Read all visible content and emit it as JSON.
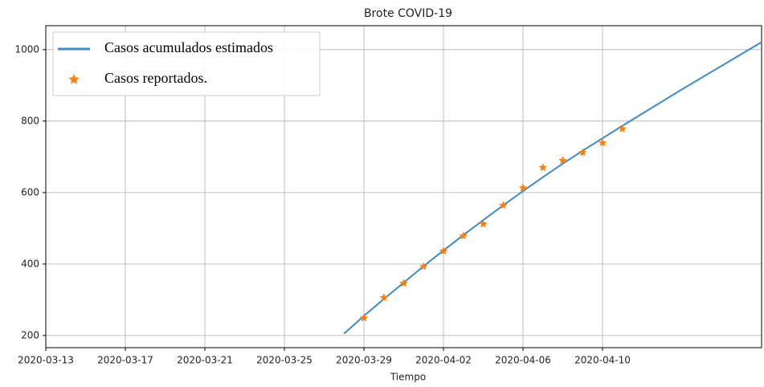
{
  "chart_data": {
    "type": "line",
    "title": "Brote COVID-19",
    "x_label": "Tiempo",
    "xlim": [
      "2020-03-13",
      "2020-04-18"
    ],
    "xticks": [
      "2020-03-13",
      "2020-03-17",
      "2020-03-21",
      "2020-03-25",
      "2020-03-29",
      "2020-04-02",
      "2020-04-06",
      "2020-04-10"
    ],
    "ylim": [
      166,
      1067
    ],
    "yticks": [
      200,
      400,
      600,
      800,
      1000
    ],
    "grid": true,
    "legend": "upper left",
    "series": [
      {
        "name": "Casos acumulados estimados",
        "color": "#3f8bc4",
        "style": "line",
        "x": [
          "2020-03-28",
          "2020-03-29",
          "2020-03-30",
          "2020-03-31",
          "2020-04-01",
          "2020-04-02",
          "2020-04-03",
          "2020-04-04",
          "2020-04-05",
          "2020-04-06",
          "2020-04-07",
          "2020-04-08",
          "2020-04-09",
          "2020-04-10",
          "2020-04-11",
          "2020-04-12",
          "2020-04-13",
          "2020-04-14",
          "2020-04-15",
          "2020-04-16",
          "2020-04-17",
          "2020-04-18"
        ],
        "values": [
          205,
          255,
          302,
          348,
          394,
          438,
          481,
          523,
          564,
          604,
          643,
          681,
          717,
          752,
          787,
          821,
          855,
          889,
          922,
          955,
          988,
          1021
        ]
      },
      {
        "name": "Casos reportados.",
        "color": "#ff7f0e",
        "style": "star",
        "x": [
          "2020-03-29",
          "2020-03-30",
          "2020-03-31",
          "2020-04-01",
          "2020-04-02",
          "2020-04-03",
          "2020-04-04",
          "2020-04-05",
          "2020-04-06",
          "2020-04-07",
          "2020-04-08",
          "2020-04-09",
          "2020-04-10",
          "2020-04-11"
        ],
        "values": [
          249,
          306,
          346,
          393,
          436,
          479,
          512,
          564,
          613,
          670,
          690,
          712,
          739,
          778
        ]
      }
    ]
  }
}
